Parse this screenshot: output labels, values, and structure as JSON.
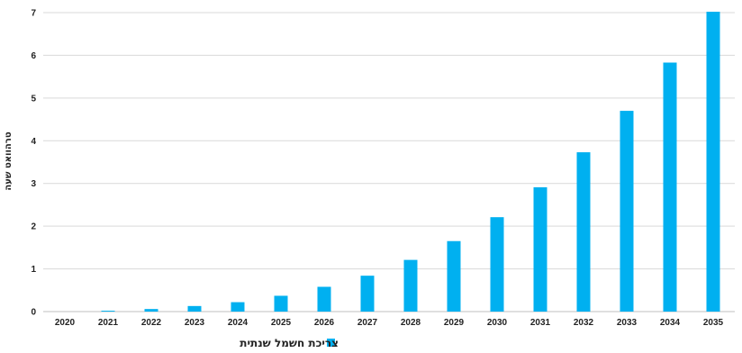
{
  "chart_data": {
    "type": "bar",
    "categories": [
      "2020",
      "2021",
      "2022",
      "2023",
      "2024",
      "2025",
      "2026",
      "2027",
      "2028",
      "2029",
      "2030",
      "2031",
      "2032",
      "2033",
      "2034",
      "2035"
    ],
    "series": [
      {
        "name": "צריכת חשמל שנתית",
        "values": [
          0,
          0.02,
          0.06,
          0.13,
          0.22,
          0.37,
          0.58,
          0.84,
          1.21,
          1.65,
          2.21,
          2.91,
          3.73,
          4.7,
          5.83,
          7.02
        ],
        "color": "#00b0f0"
      }
    ],
    "ylabel": "טרהוואט שעה",
    "xlabel": "",
    "ylim": [
      0,
      7
    ],
    "yticks": [
      0,
      1,
      2,
      3,
      4,
      5,
      6,
      7
    ],
    "grid": true,
    "legend_position": "bottom"
  }
}
